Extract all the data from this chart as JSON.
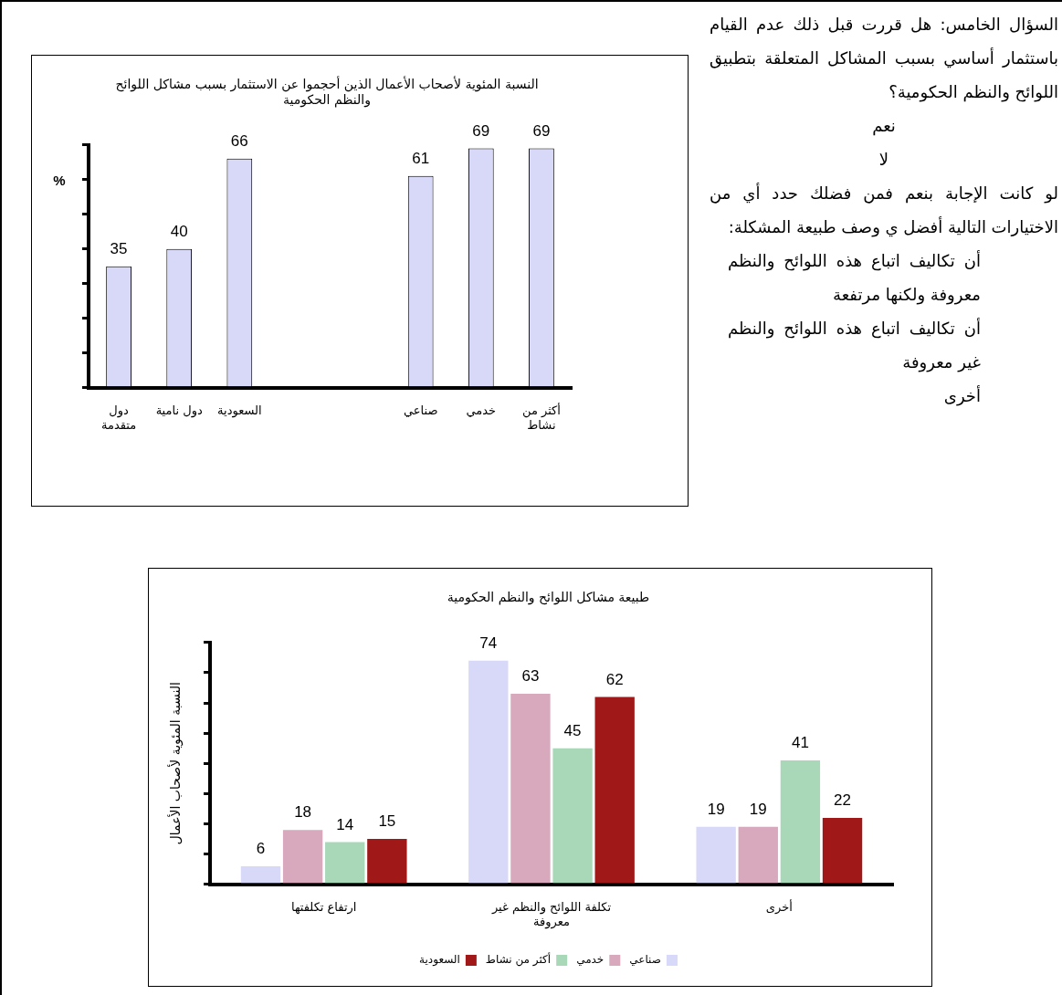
{
  "chart_data": [
    {
      "type": "bar",
      "title": "النسبة المئوية لأصحاب الأعمال الذين أحجموا عن الاستثمار بسبب مشاكل اللوائح والنظم الحكومية",
      "ylabel": "%",
      "categories": [
        "دول متقدمة",
        "دول نامية",
        "السعودية",
        null,
        null,
        "صناعي",
        "خدمي",
        "أكثر من نشاط"
      ],
      "values": [
        35,
        40,
        66,
        null,
        null,
        61,
        69,
        69
      ],
      "color": "#d8d8f8",
      "data_labels": true
    },
    {
      "type": "other",
      "annotations": [
        "السؤال الخامس: هل قررت قبل ذلك عدم القيام باستثمار أساسي بسبب المشاكل المتعلقة بتطبيق اللوائح والنظم الحكومية؟",
        "نعم",
        "لا",
        "لو كانت الإجابة بنعم فمن فضلك حدد أي من الاختيارات التالية أفضل ي وصف طبيعة المشكلة:",
        "أن تكاليف اتباع هذه اللوائح والنظم معروفة ولكنها مرتفعة",
        "أن تكاليف اتباع هذه اللوائح والنظم غير معروفة",
        "أخرى"
      ]
    },
    {
      "type": "bar",
      "title": "طبيعة مشاكل اللوائح والنظم الحكومية",
      "ylabel": "النسبة المئوية لأصحاب الأعمال",
      "categories": [
        "ارتفاع تكلفتها",
        "تكلفة اللوائح والنظم غير معروفة",
        "أخرى"
      ],
      "series": [
        {
          "name": "صناعي",
          "color": "#d8d8f8",
          "values": [
            6,
            74,
            19
          ]
        },
        {
          "name": "خدمي",
          "color": "#d8a8bc",
          "values": [
            18,
            63,
            19
          ]
        },
        {
          "name": "أكثر من نشاط",
          "color": "#a8d8b8",
          "values": [
            14,
            45,
            41
          ]
        },
        {
          "name": "السعودية",
          "color": "#a01818",
          "values": [
            15,
            62,
            22
          ]
        }
      ],
      "data_labels": true,
      "legend": "bottom"
    }
  ]
}
